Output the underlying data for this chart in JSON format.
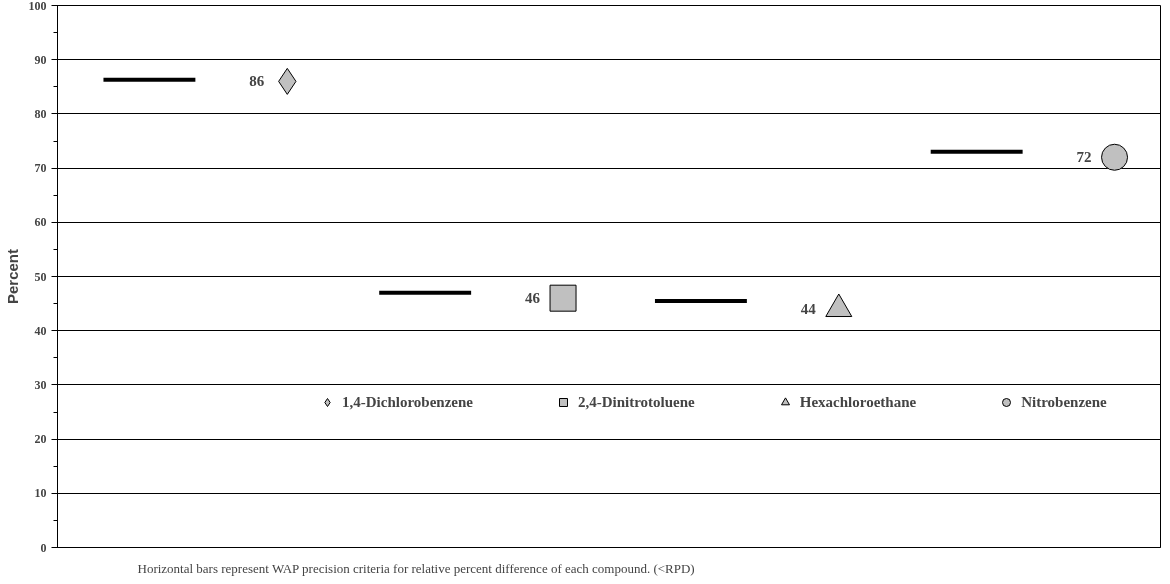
{
  "chart_data": {
    "type": "scatter",
    "ylabel": "Percent",
    "categories": [
      null,
      null,
      null,
      null,
      null,
      null,
      null,
      null,
      null,
      null,
      null,
      null
    ],
    "series": [
      {
        "type": "line",
        "color": "#000000",
        "values": [
          86.3,
          86.3,
          null,
          null,
          null,
          null,
          null,
          null,
          null,
          null,
          null,
          null
        ]
      },
      {
        "type": "line",
        "color": "#000000",
        "values": [
          null,
          null,
          null,
          47,
          47,
          null,
          null,
          null,
          null,
          null,
          null,
          null
        ]
      },
      {
        "type": "line",
        "color": "#000000",
        "values": [
          null,
          null,
          null,
          null,
          null,
          null,
          45.5,
          45.5,
          null,
          null,
          null,
          null
        ]
      },
      {
        "type": "line",
        "color": "#000000",
        "values": [
          null,
          null,
          null,
          null,
          null,
          null,
          null,
          null,
          null,
          73,
          73,
          null
        ]
      },
      {
        "marker": "diamond",
        "name": "1,4-Dichlorobenzene",
        "color": "#c0c0c0",
        "values": [
          null,
          null,
          86,
          null,
          null,
          null,
          null,
          null,
          null,
          null,
          null,
          null
        ],
        "value_labels": [
          null,
          null,
          "86",
          null,
          null,
          null,
          null,
          null,
          null,
          null,
          null,
          null
        ]
      },
      {
        "marker": "square",
        "name": "2,4-Dinitrotoluene",
        "color": "#c0c0c0",
        "values": [
          null,
          null,
          null,
          null,
          null,
          46,
          null,
          null,
          null,
          null,
          null,
          null
        ],
        "value_labels": [
          null,
          null,
          null,
          null,
          null,
          "46",
          null,
          null,
          null,
          null,
          null,
          null
        ]
      },
      {
        "marker": "triangle",
        "name": "Hexachloroethane",
        "color": "#c0c0c0",
        "values": [
          null,
          null,
          null,
          null,
          null,
          null,
          null,
          null,
          44,
          null,
          null,
          null
        ],
        "value_labels": [
          null,
          null,
          null,
          null,
          null,
          null,
          null,
          null,
          "44",
          null,
          null,
          null
        ]
      },
      {
        "marker": "circle",
        "name": "Nitrobenzene",
        "color": "#c0c0c0",
        "values": [
          null,
          null,
          null,
          null,
          null,
          null,
          null,
          null,
          null,
          null,
          null,
          72
        ],
        "value_labels": [
          null,
          null,
          null,
          null,
          null,
          null,
          null,
          null,
          null,
          null,
          null,
          "72"
        ]
      }
    ],
    "ylim": [
      0,
      100
    ],
    "yticks": [
      0,
      10,
      20,
      30,
      40,
      50,
      60,
      70,
      80,
      90,
      100
    ],
    "grid": "y",
    "legend": "bottom",
    "annotations": [
      "Horizontal bars represent WAP precision criteria for relative percent difference of each compound. (<RPD)"
    ]
  }
}
